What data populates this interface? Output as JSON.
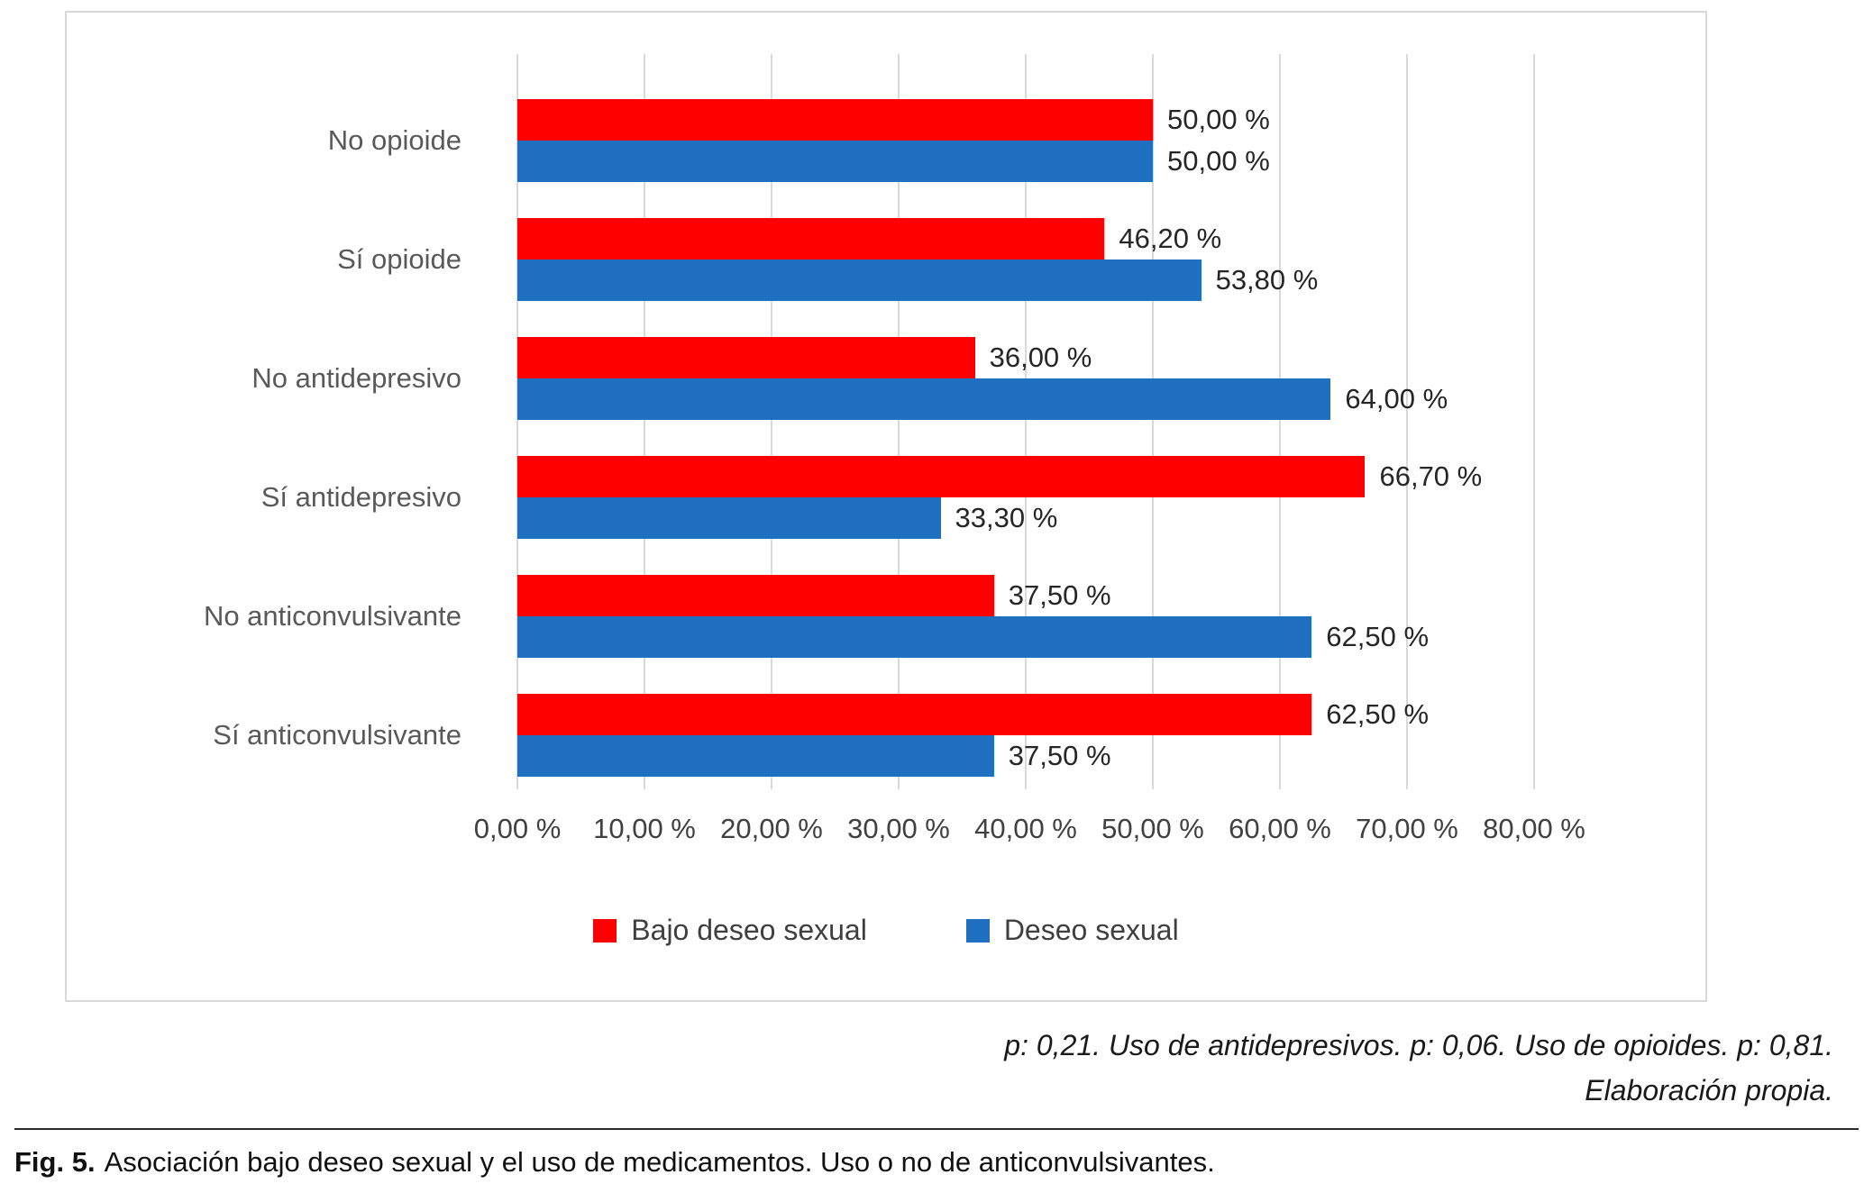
{
  "chart_data": {
    "type": "bar",
    "orientation": "horizontal",
    "categories": [
      "No opioide",
      "Sí opioide",
      "No antidepresivo",
      "Sí antidepresivo",
      "No anticonvulsivante",
      "Sí anticonvulsivante"
    ],
    "series": [
      {
        "name": "Bajo deseo sexual",
        "color": "#FF0000",
        "values": [
          50.0,
          46.2,
          36.0,
          66.7,
          37.5,
          62.5
        ],
        "value_labels": [
          "50,00 %",
          "46,20 %",
          "36,00 %",
          "66,70 %",
          "37,50 %",
          "62,50 %"
        ]
      },
      {
        "name": "Deseo sexual",
        "color": "#1F70C0",
        "values": [
          50.0,
          53.8,
          64.0,
          33.3,
          62.5,
          37.5
        ],
        "value_labels": [
          "50,00 %",
          "53,80 %",
          "64,00 %",
          "33,30 %",
          "62,50 %",
          "37,50 %"
        ]
      }
    ],
    "xlim": [
      0,
      80
    ],
    "xticks": [
      0,
      10,
      20,
      30,
      40,
      50,
      60,
      70,
      80
    ],
    "xtick_labels": [
      "0,00 %",
      "10,00 %",
      "20,00 %",
      "30,00 %",
      "40,00 %",
      "50,00 %",
      "60,00 %",
      "70,00 %",
      "80,00 %"
    ],
    "grid": true,
    "legend_position": "bottom",
    "title": "",
    "xlabel": "",
    "ylabel": ""
  },
  "colors": {
    "bar_red": "#FF0000",
    "bar_blue": "#1F70C0",
    "gridline": "#D9D9D9",
    "category_text": "#595959"
  },
  "notes": {
    "line1": "p: 0,21. Uso de antidepresivos. p: 0,06. Uso de opioides. p: 0,81.",
    "line2": "Elaboración propia."
  },
  "caption": {
    "label": "Fig. 5.",
    "text": "Asociación bajo deseo sexual y el uso de medicamentos. Uso o no de anticonvulsivantes."
  }
}
